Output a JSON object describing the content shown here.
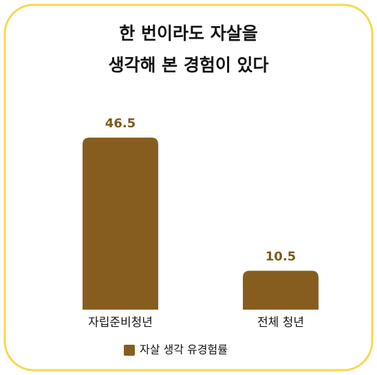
{
  "chart_data": {
    "type": "bar",
    "title": [
      "한 번이라도 자살을",
      "생각해 본 경험이 있다"
    ],
    "categories": [
      "자립준비청년",
      "전체 청년"
    ],
    "series": [
      {
        "name": "자살 생각 유경험률",
        "color": "#875d1f",
        "values": [
          46.5,
          10.5
        ]
      }
    ]
  }
}
